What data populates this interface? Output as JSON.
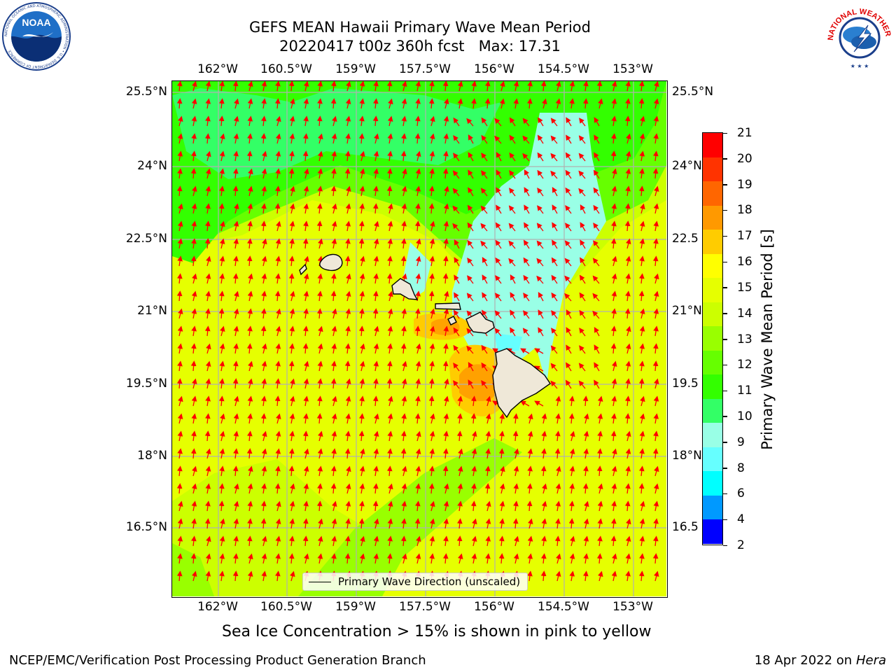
{
  "title": {
    "line1": "GEFS MEAN Hawaii Primary Wave Mean Period",
    "line2": "20220417 t00z 360h fcst   Max: 17.31"
  },
  "axes": {
    "lon_ticks": [
      "162°W",
      "160.5°W",
      "159°W",
      "157.5°W",
      "156°W",
      "154.5°W",
      "153°W"
    ],
    "lat_ticks_left": [
      "25.5°N",
      "24°N",
      "22.5°N",
      "21°N",
      "19.5°N",
      "18°N",
      "16.5°N"
    ],
    "lat_ticks_right": [
      "25.5°N",
      "24°N",
      "22.5",
      "21°N",
      "19.5",
      "18°N",
      "16.5"
    ]
  },
  "legend": {
    "label": "Primary Wave Direction (unscaled)"
  },
  "colorbar": {
    "label": "Primary Wave Mean Period [s]",
    "ticks": [
      "21",
      "20",
      "19",
      "18",
      "17",
      "16",
      "15",
      "14",
      "13",
      "12",
      "11",
      "10",
      "9",
      "8",
      "6",
      "4",
      "2"
    ],
    "colors": [
      "#ff0000",
      "#ff3300",
      "#ff6600",
      "#ff9900",
      "#ffcc00",
      "#ffff00",
      "#e6ff00",
      "#ccff00",
      "#99ff00",
      "#66ff00",
      "#33ff00",
      "#33ff66",
      "#99ffe6",
      "#66ffff",
      "#00ffff",
      "#0099ff",
      "#0000ff"
    ]
  },
  "subtitle": "Sea Ice Concentration > 15% is shown in pink to yellow",
  "footer": {
    "left": "NCEP/EMC/Verification Post Processing Product Generation Branch",
    "right_date": "18 Apr 2022 on ",
    "right_machine": "Hera"
  },
  "logos": {
    "noaa_text": "NOAA",
    "noaa_ring": "NATIONAL OCEANIC AND ATMOSPHERIC ADMINISTRATION • U.S. DEPARTMENT OF COMMERCE",
    "nws_ring": "NATIONAL WEATHER SERVICE"
  },
  "map": {
    "field": "Primary Wave Mean Period",
    "max_value": 17.31,
    "arrow_color": "#ff0000",
    "land_color": "#efe8d8",
    "islands": [
      "Kauai",
      "Niihau",
      "Oahu",
      "Molokai",
      "Maui",
      "Hawaii"
    ]
  }
}
